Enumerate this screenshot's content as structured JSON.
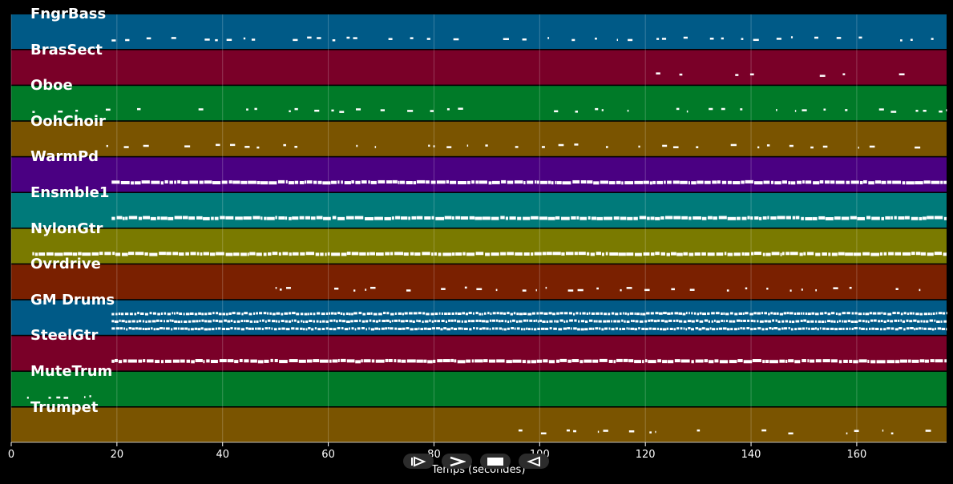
{
  "chart_data": {
    "type": "piano-roll",
    "xlabel": "Temps (secondes)",
    "xlim": [
      0,
      177
    ],
    "xticks": [
      0,
      20,
      40,
      60,
      80,
      100,
      120,
      140,
      160
    ],
    "tick_labels": [
      "0",
      "20",
      "40",
      "60",
      "80",
      "100",
      "120",
      "140",
      "160"
    ],
    "grid": true,
    "tracks": [
      {
        "name": "FngrBass",
        "color": "#005a87",
        "start": 19,
        "end": 177,
        "density": 0.55,
        "rows": 1,
        "style": "sparse"
      },
      {
        "name": "BrasSect",
        "color": "#7a0028",
        "start": 122,
        "end": 177,
        "density": 0.5,
        "rows": 1,
        "style": "phrases",
        "phrases": [
          [
            122,
            127
          ],
          [
            137,
            143
          ],
          [
            153,
            158
          ],
          [
            168,
            174
          ]
        ]
      },
      {
        "name": "Oboe",
        "color": "#007a28",
        "start": 4,
        "end": 177,
        "density": 0.55,
        "rows": 1,
        "style": "sparse"
      },
      {
        "name": "OohChoir",
        "color": "#7a5400",
        "start": 18,
        "end": 177,
        "density": 0.5,
        "rows": 1,
        "style": "sparse"
      },
      {
        "name": "WarmPd",
        "color": "#4a0082",
        "start": 19,
        "end": 177,
        "density": 0.95,
        "rows": 1,
        "style": "solid"
      },
      {
        "name": "Ensmble1",
        "color": "#007a7a",
        "start": 19,
        "end": 177,
        "density": 0.9,
        "rows": 1,
        "style": "solid"
      },
      {
        "name": "NylonGtr",
        "color": "#7a7a00",
        "start": 4,
        "end": 177,
        "density": 0.9,
        "rows": 1,
        "style": "solid"
      },
      {
        "name": "Ovrdrive",
        "color": "#7a2000",
        "start": 50,
        "end": 177,
        "density": 0.6,
        "rows": 1,
        "style": "sparse"
      },
      {
        "name": "GM Drums",
        "color": "#005a87",
        "start": 19,
        "end": 177,
        "density": 0.95,
        "rows": 3,
        "style": "drums"
      },
      {
        "name": "SteelGtr",
        "color": "#7a0028",
        "start": 19,
        "end": 177,
        "density": 0.95,
        "rows": 1,
        "style": "solid"
      },
      {
        "name": "MuteTrum",
        "color": "#007a28",
        "start": 3,
        "end": 18,
        "density": 0.6,
        "rows": 1,
        "style": "sparse"
      },
      {
        "name": "Trumpet",
        "color": "#7a5400",
        "start": 96,
        "end": 177,
        "density": 0.55,
        "rows": 1,
        "style": "phrases",
        "phrases": [
          [
            96,
            108
          ],
          [
            111,
            122
          ],
          [
            127,
            137
          ],
          [
            142,
            152
          ],
          [
            158,
            168
          ],
          [
            173,
            177
          ]
        ]
      }
    ]
  },
  "controls": [
    {
      "name": "play-from-start-button",
      "icon": "play-from-start-icon"
    },
    {
      "name": "play-button",
      "icon": "play-icon"
    },
    {
      "name": "stop-button",
      "icon": "stop-icon"
    },
    {
      "name": "rewind-button",
      "icon": "rewind-icon"
    }
  ]
}
